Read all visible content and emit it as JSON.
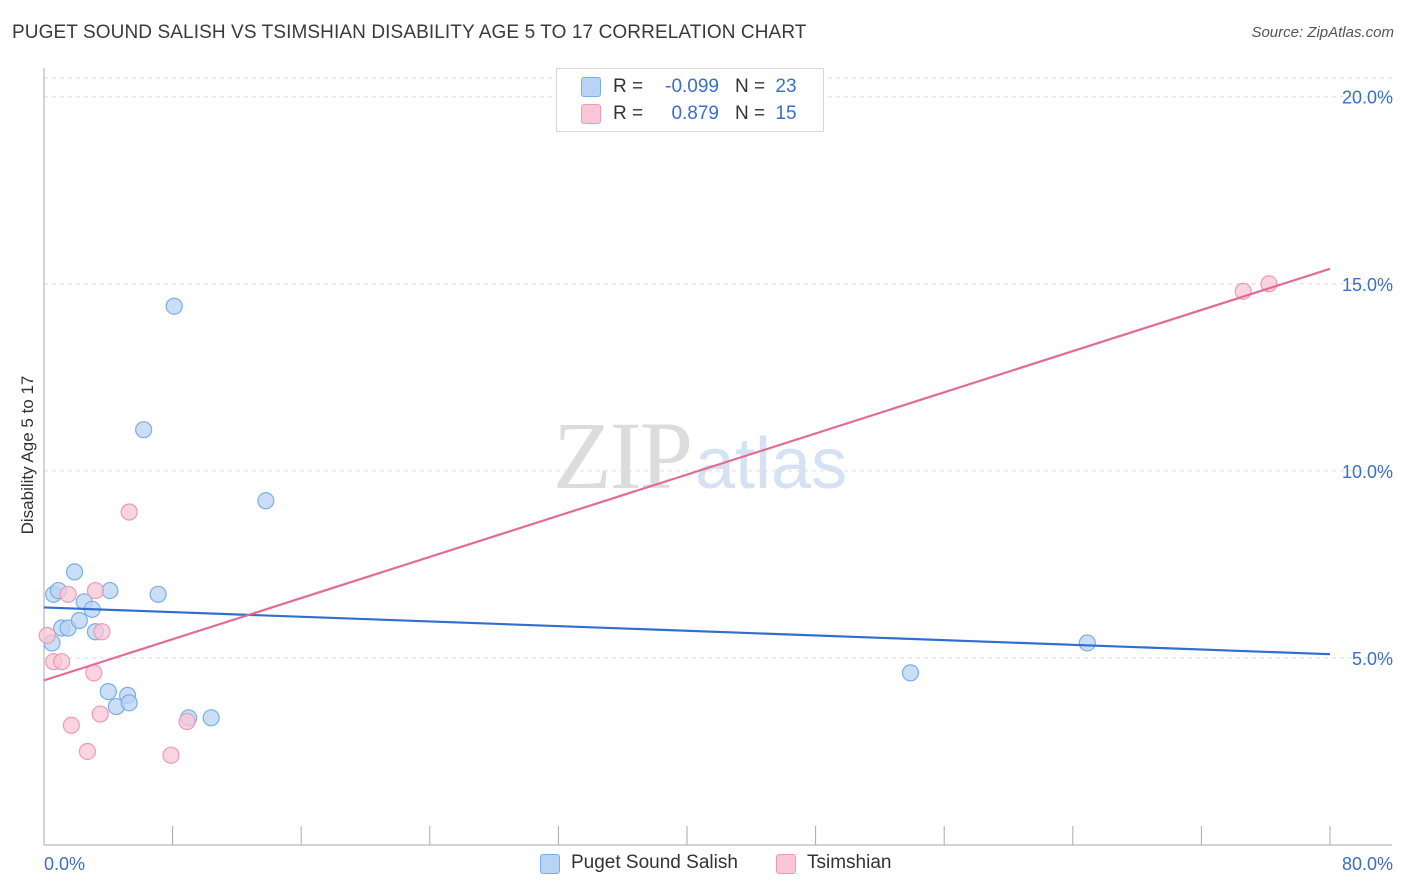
{
  "header": {
    "title": "PUGET SOUND SALISH VS TSIMSHIAN DISABILITY AGE 5 TO 17 CORRELATION CHART",
    "source": "Source: ZipAtlas.com"
  },
  "watermark": {
    "zip": "ZIP",
    "atlas": "atlas"
  },
  "legend_top": {
    "rows": [
      {
        "r_label": "R =",
        "r_value": "-0.099",
        "n_label": "N =",
        "n_value": "23"
      },
      {
        "r_label": "R =",
        "r_value": "0.879",
        "n_label": "N =",
        "n_value": "15"
      }
    ]
  },
  "legend_bottom": {
    "items": [
      {
        "label": "Puget Sound Salish"
      },
      {
        "label": "Tsimshian"
      }
    ]
  },
  "colors": {
    "blue_fill": "#b8d3f3",
    "blue_stroke": "#7aaee6",
    "blue_line": "#2f6fd0",
    "pink_fill": "#f8c6d6",
    "pink_stroke": "#ee9ab5",
    "pink_line": "#e36b94",
    "tick_label": "#3a6fc4",
    "grid": "#dddddd"
  },
  "chart_data": {
    "type": "scatter",
    "title": "PUGET SOUND SALISH VS TSIMSHIAN DISABILITY AGE 5 TO 17 CORRELATION CHART",
    "xlabel": "",
    "ylabel": "Disability Age 5 to 17",
    "xlim": [
      0,
      80
    ],
    "ylim": [
      0,
      20.5
    ],
    "x_tick_labels": [
      "0.0%",
      "80.0%"
    ],
    "y_ticks": [
      5,
      10,
      15,
      20
    ],
    "y_tick_labels": [
      "5.0%",
      "10.0%",
      "15.0%",
      "20.0%"
    ],
    "grid": true,
    "legend_position": "top-center",
    "series": [
      {
        "name": "Puget Sound Salish",
        "r": -0.099,
        "n": 23,
        "points": [
          [
            0.5,
            5.4
          ],
          [
            0.6,
            6.7
          ],
          [
            0.9,
            6.8
          ],
          [
            1.1,
            5.8
          ],
          [
            1.5,
            5.8
          ],
          [
            1.9,
            7.3
          ],
          [
            2.2,
            6.0
          ],
          [
            2.5,
            6.5
          ],
          [
            3.0,
            6.3
          ],
          [
            3.2,
            5.7
          ],
          [
            4.0,
            4.1
          ],
          [
            4.1,
            6.8
          ],
          [
            4.5,
            3.7
          ],
          [
            5.2,
            4.0
          ],
          [
            5.3,
            3.8
          ],
          [
            6.2,
            11.1
          ],
          [
            7.1,
            6.7
          ],
          [
            8.1,
            14.4
          ],
          [
            9.0,
            3.4
          ],
          [
            10.4,
            3.4
          ],
          [
            13.8,
            9.2
          ],
          [
            53.9,
            4.6
          ],
          [
            64.9,
            5.4
          ]
        ],
        "trend": [
          [
            0,
            6.35
          ],
          [
            80,
            5.1
          ]
        ]
      },
      {
        "name": "Tsimshian",
        "r": 0.879,
        "n": 15,
        "points": [
          [
            0.2,
            5.6
          ],
          [
            0.6,
            4.9
          ],
          [
            1.1,
            4.9
          ],
          [
            1.5,
            6.7
          ],
          [
            1.7,
            3.2
          ],
          [
            2.7,
            2.5
          ],
          [
            3.1,
            4.6
          ],
          [
            3.2,
            6.8
          ],
          [
            3.5,
            3.5
          ],
          [
            3.6,
            5.7
          ],
          [
            5.3,
            8.9
          ],
          [
            7.9,
            2.4
          ],
          [
            8.9,
            3.3
          ],
          [
            74.6,
            14.8
          ],
          [
            76.2,
            15.0
          ]
        ],
        "trend": [
          [
            0,
            4.4
          ],
          [
            80,
            15.4
          ]
        ]
      }
    ]
  }
}
